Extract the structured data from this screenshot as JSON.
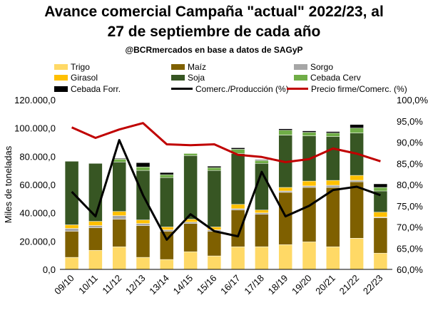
{
  "header": {
    "title_line1": "Avance comercial Campaña \"actual\" 2022/23, al",
    "title_line2": "27 de septiembre de cada año",
    "subtitle": "@BCRmercados en base a datos de SAGyP"
  },
  "chart_data": {
    "type": "bar",
    "stacked": true,
    "categories": [
      "09/10",
      "10/11",
      "11/12",
      "12/13",
      "13/14",
      "14/15",
      "15/16",
      "16/17",
      "17/18",
      "18/19",
      "19/20",
      "20/21",
      "21/22",
      "22/23"
    ],
    "ylabel": "Miles de toneladas",
    "y_left_ticks": [
      "0,0",
      "20.000,0",
      "40.000,0",
      "60.000,0",
      "80.000,0",
      "100.000,0",
      "120.000,0"
    ],
    "y_left_range": [
      0,
      120000
    ],
    "y_right_ticks": [
      "60,0%",
      "65,0%",
      "70,0%",
      "75,0%",
      "80,0%",
      "85,0%",
      "90,0%",
      "95,0%",
      "100,0%"
    ],
    "y_right_range": [
      60,
      100
    ],
    "grid": false,
    "legend_position": "top",
    "series": [
      {
        "name": "Trigo",
        "color": "#FFD966",
        "values": [
          8500,
          13500,
          16000,
          8500,
          7000,
          12500,
          9500,
          16000,
          16000,
          17500,
          19500,
          16000,
          22000,
          11500
        ]
      },
      {
        "name": "Maíz",
        "color": "#7F6000",
        "values": [
          18500,
          16000,
          19500,
          22500,
          20000,
          20000,
          17500,
          26000,
          23000,
          37000,
          38500,
          42000,
          40000,
          25000
        ]
      },
      {
        "name": "Sorgo",
        "color": "#A6A6A6",
        "values": [
          2000,
          1500,
          2500,
          1500,
          1000,
          1000,
          1000,
          1000,
          1000,
          1000,
          1000,
          1500,
          1000,
          500
        ]
      },
      {
        "name": "Girasol",
        "color": "#FFC000",
        "values": [
          2500,
          3000,
          3000,
          2500,
          2000,
          2000,
          2000,
          3000,
          2000,
          2500,
          3500,
          3500,
          3500,
          3500
        ]
      },
      {
        "name": "Soja",
        "color": "#375623",
        "values": [
          45000,
          41000,
          35000,
          35000,
          35000,
          45000,
          40000,
          36000,
          33000,
          37000,
          32000,
          31000,
          30000,
          15000
        ]
      },
      {
        "name": "Cebada Cerv",
        "color": "#70AD47",
        "values": [
          0,
          0,
          2000,
          2500,
          2000,
          1500,
          2000,
          3000,
          2000,
          3500,
          2500,
          2500,
          3500,
          2500
        ]
      },
      {
        "name": "Cebada Forr.",
        "color": "#000000",
        "values": [
          0,
          0,
          500,
          3000,
          1500,
          0,
          1000,
          1000,
          500,
          1000,
          1000,
          1000,
          2500,
          2500
        ]
      },
      {
        "name": "Comerc./Producción (%)",
        "type": "line",
        "axis": "right",
        "color": "#000000",
        "values": [
          78.3,
          72.5,
          90.5,
          77.5,
          67.0,
          73.0,
          69.0,
          67.8,
          83.0,
          72.5,
          75.0,
          78.7,
          79.5,
          77.5
        ]
      },
      {
        "name": "Precio firme/Comerc. (%)",
        "type": "line",
        "axis": "right",
        "color": "#C00000",
        "values": [
          93.5,
          91.0,
          93.0,
          94.5,
          89.5,
          89.3,
          89.5,
          87.0,
          86.5,
          85.3,
          86.0,
          88.5,
          87.3,
          85.5
        ]
      }
    ]
  }
}
